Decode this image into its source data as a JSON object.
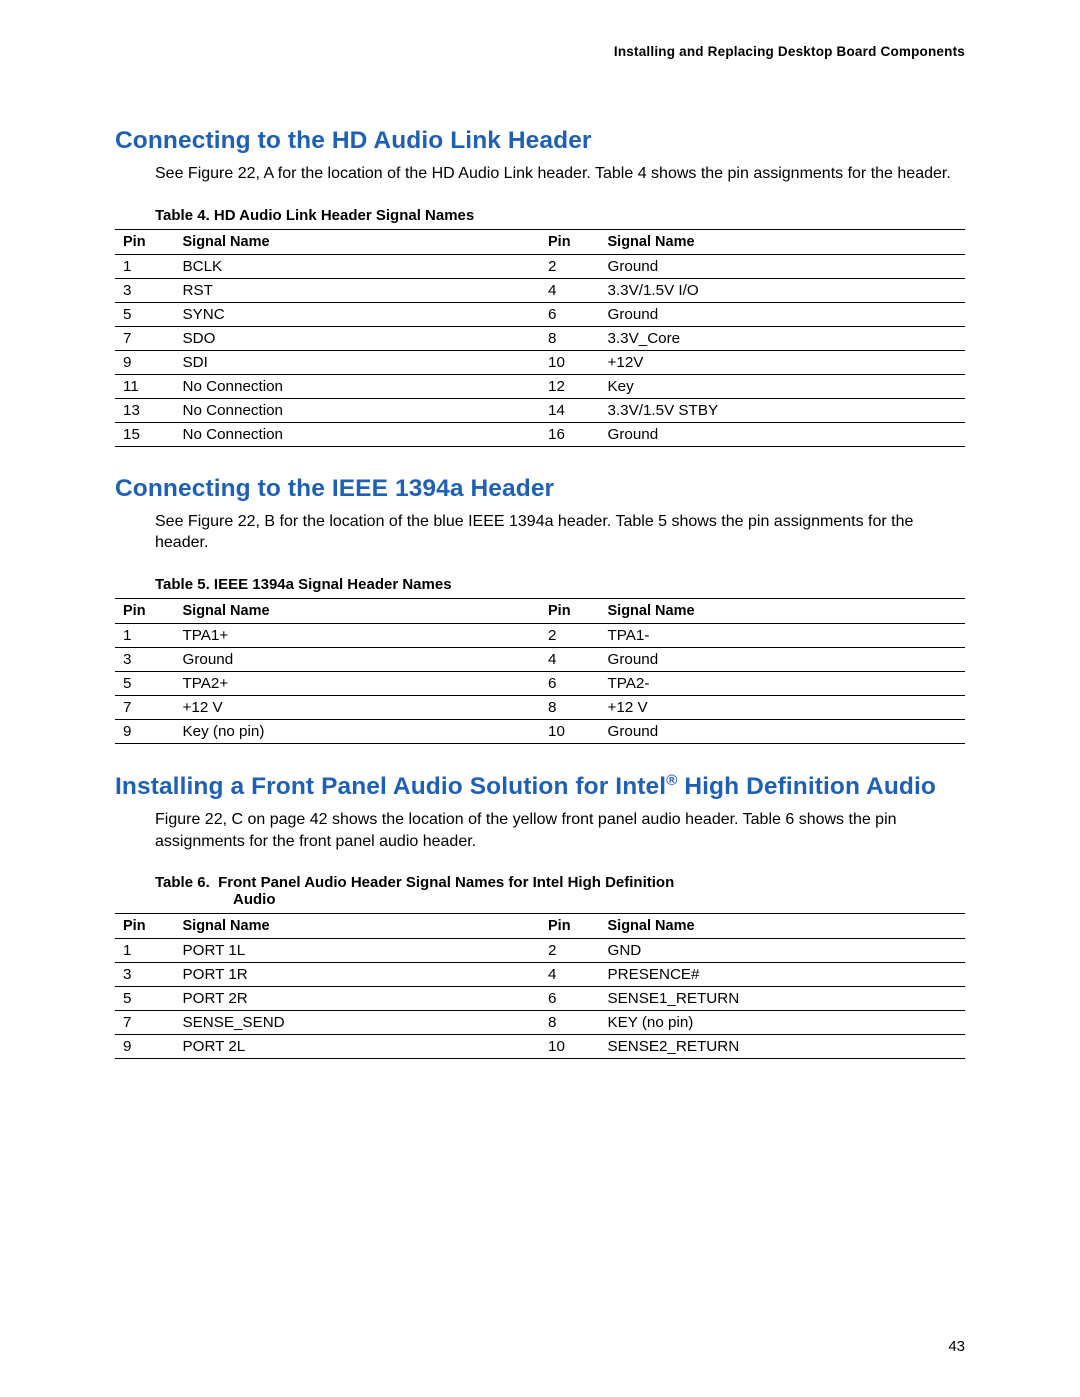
{
  "colors": {
    "heading": "#1f60b7",
    "text": "#000000",
    "rule": "#000000",
    "background": "#ffffff"
  },
  "runningHeader": "Installing and Replacing Desktop Board Components",
  "pageNumber": "43",
  "sections": [
    {
      "heading": "Connecting to the HD Audio Link Header",
      "paragraph": "See Figure 22, A for the location of the HD Audio Link header.  Table 4 shows the pin assignments for the header.",
      "tableCaption": "Table 4.  HD Audio Link Header Signal Names",
      "tableHeaders": [
        "Pin",
        "Signal Name",
        "Pin",
        "Signal Name"
      ],
      "rows": [
        [
          "1",
          "BCLK",
          "2",
          "Ground"
        ],
        [
          "3",
          "RST",
          "4",
          "3.3V/1.5V I/O"
        ],
        [
          "5",
          "SYNC",
          "6",
          "Ground"
        ],
        [
          "7",
          "SDO",
          "8",
          "3.3V_Core"
        ],
        [
          "9",
          "SDI",
          "10",
          "+12V"
        ],
        [
          "11",
          "No Connection",
          "12",
          "Key"
        ],
        [
          "13",
          "No Connection",
          "14",
          "3.3V/1.5V STBY"
        ],
        [
          "15",
          "No Connection",
          "16",
          "Ground"
        ]
      ]
    },
    {
      "heading": "Connecting to the IEEE 1394a Header",
      "paragraph": "See Figure 22, B for the location of the blue IEEE 1394a header.  Table 5 shows the pin assignments for the header.",
      "tableCaption": "Table 5.  IEEE 1394a Signal Header Names",
      "tableHeaders": [
        "Pin",
        "Signal Name",
        "Pin",
        "Signal Name"
      ],
      "rows": [
        [
          "1",
          "TPA1+",
          "2",
          "TPA1-"
        ],
        [
          "3",
          "Ground",
          "4",
          "Ground"
        ],
        [
          "5",
          "TPA2+",
          "6",
          "TPA2-"
        ],
        [
          "7",
          "+12 V",
          "8",
          "+12 V"
        ],
        [
          "9",
          "Key (no pin)",
          "10",
          "Ground"
        ]
      ]
    },
    {
      "heading": "Installing a Front Panel Audio Solution for Intel® High Definition Audio",
      "paragraph": "Figure 22, C on page 42 shows the location of the yellow front panel audio header.  Table 6 shows the pin assignments for the front panel audio header.",
      "tableCaption": "Table 6.  Front Panel Audio Header Signal Names for Intel High Definition Audio",
      "tableCaptionLine2": "Audio",
      "tableHeaders": [
        "Pin",
        "Signal Name",
        "Pin",
        "Signal Name"
      ],
      "rows": [
        [
          "1",
          "PORT 1L",
          "2",
          "GND"
        ],
        [
          "3",
          "PORT 1R",
          "4",
          "PRESENCE#"
        ],
        [
          "5",
          "PORT 2R",
          "6",
          "SENSE1_RETURN"
        ],
        [
          "7",
          "SENSE_SEND",
          "8",
          "KEY (no pin)"
        ],
        [
          "9",
          "PORT 2L",
          "10",
          "SENSE2_RETURN"
        ]
      ]
    }
  ]
}
